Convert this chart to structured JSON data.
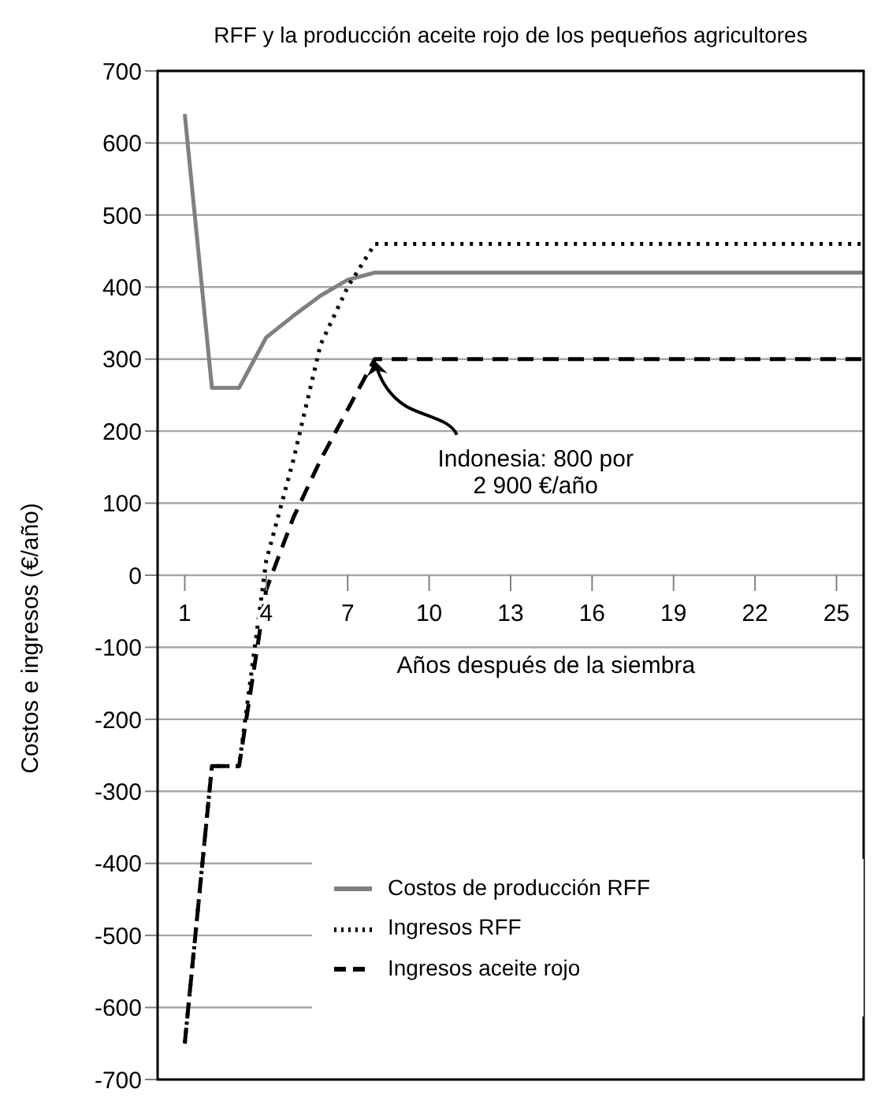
{
  "chart_data": {
    "type": "line",
    "title": "RFF y la producción aceite rojo de los pequeños agricultores",
    "xlabel": "Años después de la siembra",
    "ylabel": "Costos e ingresos (€/año)",
    "x": [
      1,
      2,
      3,
      4,
      5,
      6,
      7,
      8,
      9,
      10,
      11,
      12,
      13,
      14,
      15,
      16,
      17,
      18,
      19,
      20,
      21,
      22,
      23,
      24,
      25,
      26
    ],
    "xlim": [
      0,
      26
    ],
    "xticks": [
      1,
      4,
      7,
      10,
      13,
      16,
      19,
      22,
      25
    ],
    "ylim": [
      -700,
      700
    ],
    "yticks": [
      -700,
      -600,
      -500,
      -400,
      -300,
      -200,
      -100,
      0,
      100,
      200,
      300,
      400,
      500,
      600,
      700
    ],
    "grid": "y",
    "legend": "bottom right",
    "marker": "none",
    "series": [
      {
        "name": "Costos de producción RFF",
        "color": "#808080",
        "line_style": "solid",
        "values": [
          640,
          260,
          260,
          330,
          360,
          388,
          410,
          420,
          420,
          420,
          420,
          420,
          420,
          420,
          420,
          420,
          420,
          420,
          420,
          420,
          420,
          420,
          420,
          420,
          420,
          420
        ]
      },
      {
        "name": "Ingresos RFF",
        "color": "#000000",
        "line_style": "dotted",
        "values": [
          -650,
          -265,
          -265,
          20,
          160,
          320,
          400,
          460,
          460,
          460,
          460,
          460,
          460,
          460,
          460,
          460,
          460,
          460,
          460,
          460,
          460,
          460,
          460,
          460,
          460,
          460
        ]
      },
      {
        "name": "Ingresos aceite rojo",
        "color": "#000000",
        "line_style": "dashed",
        "values": [
          -650,
          -265,
          -265,
          -20,
          80,
          160,
          230,
          300,
          300,
          300,
          300,
          300,
          300,
          300,
          300,
          300,
          300,
          300,
          300,
          300,
          300,
          300,
          300,
          300,
          300,
          300
        ]
      }
    ],
    "annotations": [
      {
        "text": "Indonesia: 800 por\n2 900 €/año",
        "x": 8,
        "y": 300
      }
    ]
  }
}
